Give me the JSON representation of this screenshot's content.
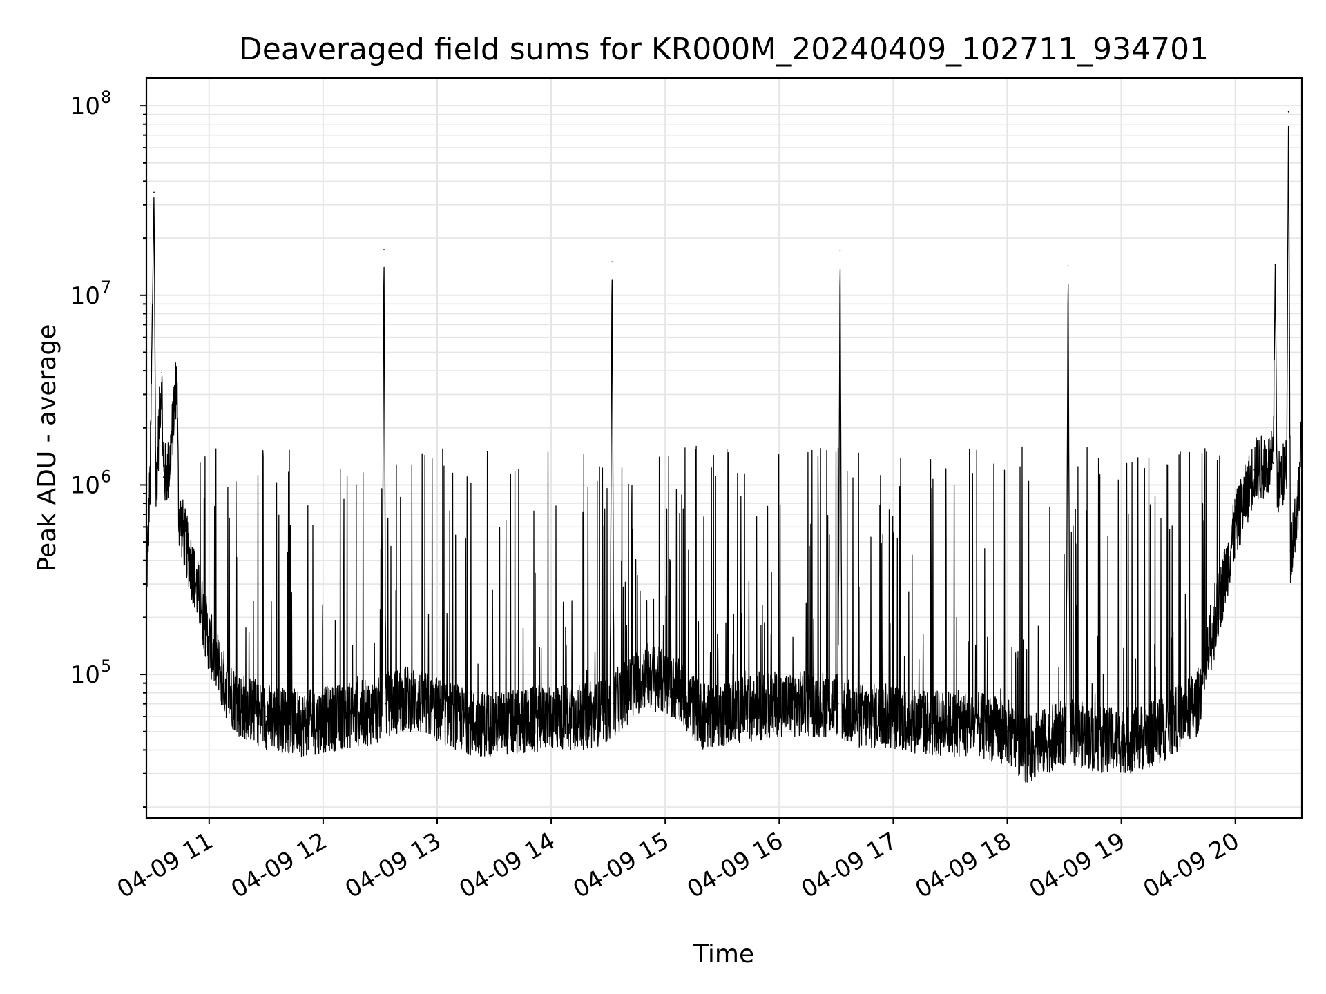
{
  "chart_data": {
    "type": "line",
    "title": "Deaveraged field sums for KR000M_20240409_102711_934701",
    "xlabel": "Time",
    "ylabel": "Peak ADU - average",
    "y_scale": "log",
    "ylim": [
      17500,
      140000000
    ],
    "xlim": [
      "2024-04-09 10:27",
      "2024-04-09 20:35"
    ],
    "x_tick_labels": [
      "04-09 11",
      "04-09 12",
      "04-09 13",
      "04-09 14",
      "04-09 15",
      "04-09 16",
      "04-09 17",
      "04-09 18",
      "04-09 19",
      "04-09 20"
    ],
    "x_ticks": [
      "2024-04-09 11:00",
      "2024-04-09 12:00",
      "2024-04-09 13:00",
      "2024-04-09 14:00",
      "2024-04-09 15:00",
      "2024-04-09 16:00",
      "2024-04-09 17:00",
      "2024-04-09 18:00",
      "2024-04-09 19:00",
      "2024-04-09 20:00"
    ],
    "y_ticks": [
      {
        "value": 100000,
        "base": "10",
        "exp": "5"
      },
      {
        "value": 1000000,
        "base": "10",
        "exp": "6"
      },
      {
        "value": 10000000,
        "base": "10",
        "exp": "7"
      },
      {
        "value": 100000000,
        "base": "10",
        "exp": "8"
      }
    ],
    "grid": true,
    "color": "#000000",
    "series": [
      {
        "name": "",
        "points": [
          [
            "2024-04-09 10:27",
            300000
          ],
          [
            "2024-04-09 10:29",
            1100000
          ],
          [
            "2024-04-09 10:31",
            35000000
          ],
          [
            "2024-04-09 10:32",
            900000
          ],
          [
            "2024-04-09 10:35",
            3900000
          ],
          [
            "2024-04-09 10:36",
            1100000
          ],
          [
            "2024-04-09 10:39",
            1200000
          ],
          [
            "2024-04-09 10:43",
            3800000
          ],
          [
            "2024-04-09 10:44",
            700000
          ],
          [
            "2024-04-09 10:50",
            400000
          ],
          [
            "2024-04-09 10:55",
            250000
          ],
          [
            "2024-04-09 11:00",
            150000
          ],
          [
            "2024-04-09 11:08",
            90000
          ],
          [
            "2024-04-09 11:15",
            70000
          ],
          [
            "2024-04-09 11:30",
            60000
          ],
          [
            "2024-04-09 11:50",
            55000
          ],
          [
            "2024-04-09 12:10",
            60000
          ],
          [
            "2024-04-09 12:31",
            65000
          ],
          [
            "2024-04-09 12:32",
            17500000
          ],
          [
            "2024-04-09 12:33",
            70000
          ],
          [
            "2024-04-09 12:45",
            75000
          ],
          [
            "2024-04-09 13:00",
            65000
          ],
          [
            "2024-04-09 13:20",
            55000
          ],
          [
            "2024-04-09 13:40",
            55000
          ],
          [
            "2024-04-09 14:00",
            60000
          ],
          [
            "2024-04-09 14:20",
            60000
          ],
          [
            "2024-04-09 14:31",
            65000
          ],
          [
            "2024-04-09 14:32",
            15000000
          ],
          [
            "2024-04-09 14:33",
            70000
          ],
          [
            "2024-04-09 14:50",
            100000
          ],
          [
            "2024-04-09 15:05",
            85000
          ],
          [
            "2024-04-09 15:20",
            60000
          ],
          [
            "2024-04-09 15:40",
            65000
          ],
          [
            "2024-04-09 16:00",
            70000
          ],
          [
            "2024-04-09 16:31",
            70000
          ],
          [
            "2024-04-09 16:32",
            17200000
          ],
          [
            "2024-04-09 16:33",
            65000
          ],
          [
            "2024-04-09 16:45",
            60000
          ],
          [
            "2024-04-09 17:00",
            60000
          ],
          [
            "2024-04-09 17:20",
            55000
          ],
          [
            "2024-04-09 17:40",
            55000
          ],
          [
            "2024-04-09 18:00",
            50000
          ],
          [
            "2024-04-09 18:10",
            40000
          ],
          [
            "2024-04-09 18:31",
            50000
          ],
          [
            "2024-04-09 18:32",
            14300000
          ],
          [
            "2024-04-09 18:33",
            50000
          ],
          [
            "2024-04-09 18:50",
            45000
          ],
          [
            "2024-04-09 19:05",
            45000
          ],
          [
            "2024-04-09 19:20",
            50000
          ],
          [
            "2024-04-09 19:40",
            70000
          ],
          [
            "2024-04-09 19:50",
            200000
          ],
          [
            "2024-04-09 20:00",
            600000
          ],
          [
            "2024-04-09 20:10",
            1200000
          ],
          [
            "2024-04-09 20:20",
            1300000
          ],
          [
            "2024-04-09 20:21",
            14500000
          ],
          [
            "2024-04-09 20:22",
            1000000
          ],
          [
            "2024-04-09 20:27",
            1200000
          ],
          [
            "2024-04-09 20:28",
            93000000
          ],
          [
            "2024-04-09 20:29",
            450000
          ],
          [
            "2024-04-09 20:33",
            800000
          ],
          [
            "2024-04-09 20:35",
            2200000
          ]
        ]
      }
    ]
  }
}
